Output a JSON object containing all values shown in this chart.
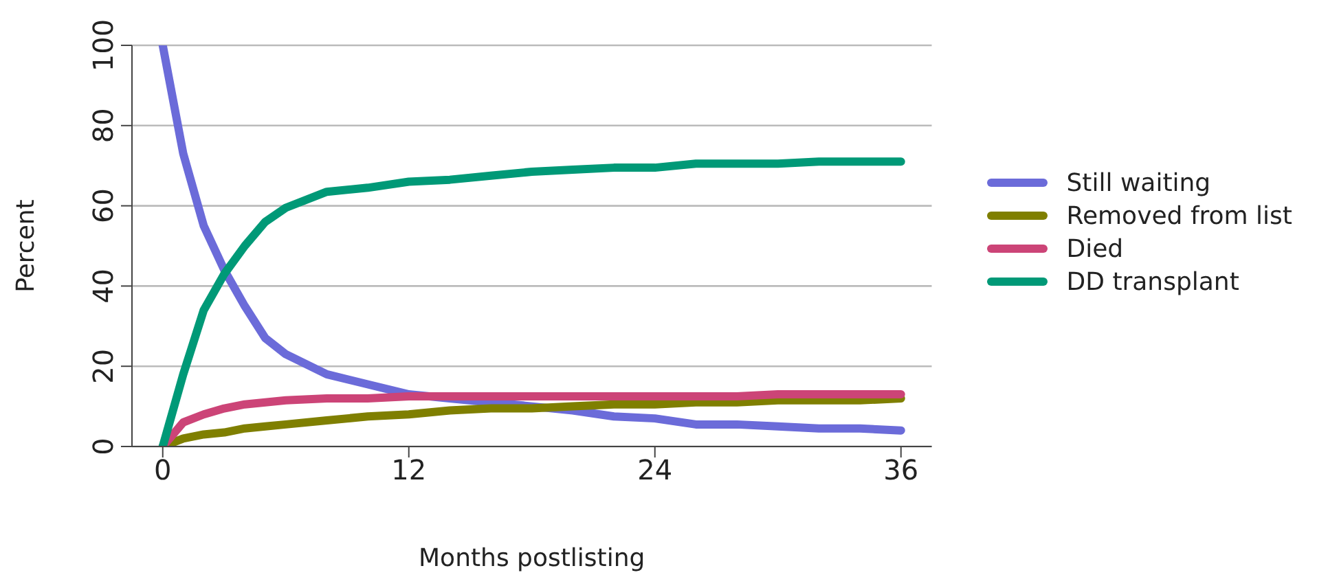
{
  "chart_data": {
    "type": "line",
    "xlabel": "Months postlisting",
    "ylabel": "Percent",
    "x": [
      0,
      1,
      2,
      3,
      4,
      5,
      6,
      8,
      10,
      12,
      14,
      16,
      18,
      20,
      22,
      24,
      26,
      28,
      30,
      32,
      34,
      36
    ],
    "series": [
      {
        "name": "Still waiting",
        "color": "#6b6bd9",
        "values": [
          100,
          73,
          55,
          44,
          35,
          27,
          23,
          18,
          15.5,
          13,
          12,
          11,
          10,
          9,
          7.5,
          7,
          5.5,
          5.5,
          5,
          4.5,
          4.5,
          4
        ]
      },
      {
        "name": "Removed from list",
        "color": "#7f7f00",
        "values": [
          0,
          2,
          3,
          3.5,
          4.5,
          5,
          5.5,
          6.5,
          7.5,
          8,
          9,
          9.5,
          9.5,
          10,
          10.5,
          10.5,
          11,
          11,
          11.5,
          11.5,
          11.5,
          12
        ]
      },
      {
        "name": "Died",
        "color": "#cc4477",
        "values": [
          0,
          6,
          8,
          9.5,
          10.5,
          11,
          11.5,
          12,
          12,
          12.5,
          12.5,
          12.5,
          12.5,
          12.5,
          12.5,
          12.5,
          12.5,
          12.5,
          13,
          13,
          13,
          13
        ]
      },
      {
        "name": "DD transplant",
        "color": "#009977",
        "values": [
          0,
          18,
          34,
          43,
          50,
          56,
          59.5,
          63.5,
          64.5,
          66,
          66.5,
          67.5,
          68.5,
          69,
          69.5,
          69.5,
          70.5,
          70.5,
          70.5,
          71,
          71,
          71
        ]
      }
    ],
    "xlim": [
      -1.5,
      37.5
    ],
    "ylim": [
      0,
      100
    ],
    "xticks": [
      0,
      12,
      24,
      36
    ],
    "yticks": [
      0,
      20,
      40,
      60,
      80,
      100
    ],
    "grid": "y",
    "legend": "right",
    "marker": "none",
    "line_style": "solid"
  }
}
